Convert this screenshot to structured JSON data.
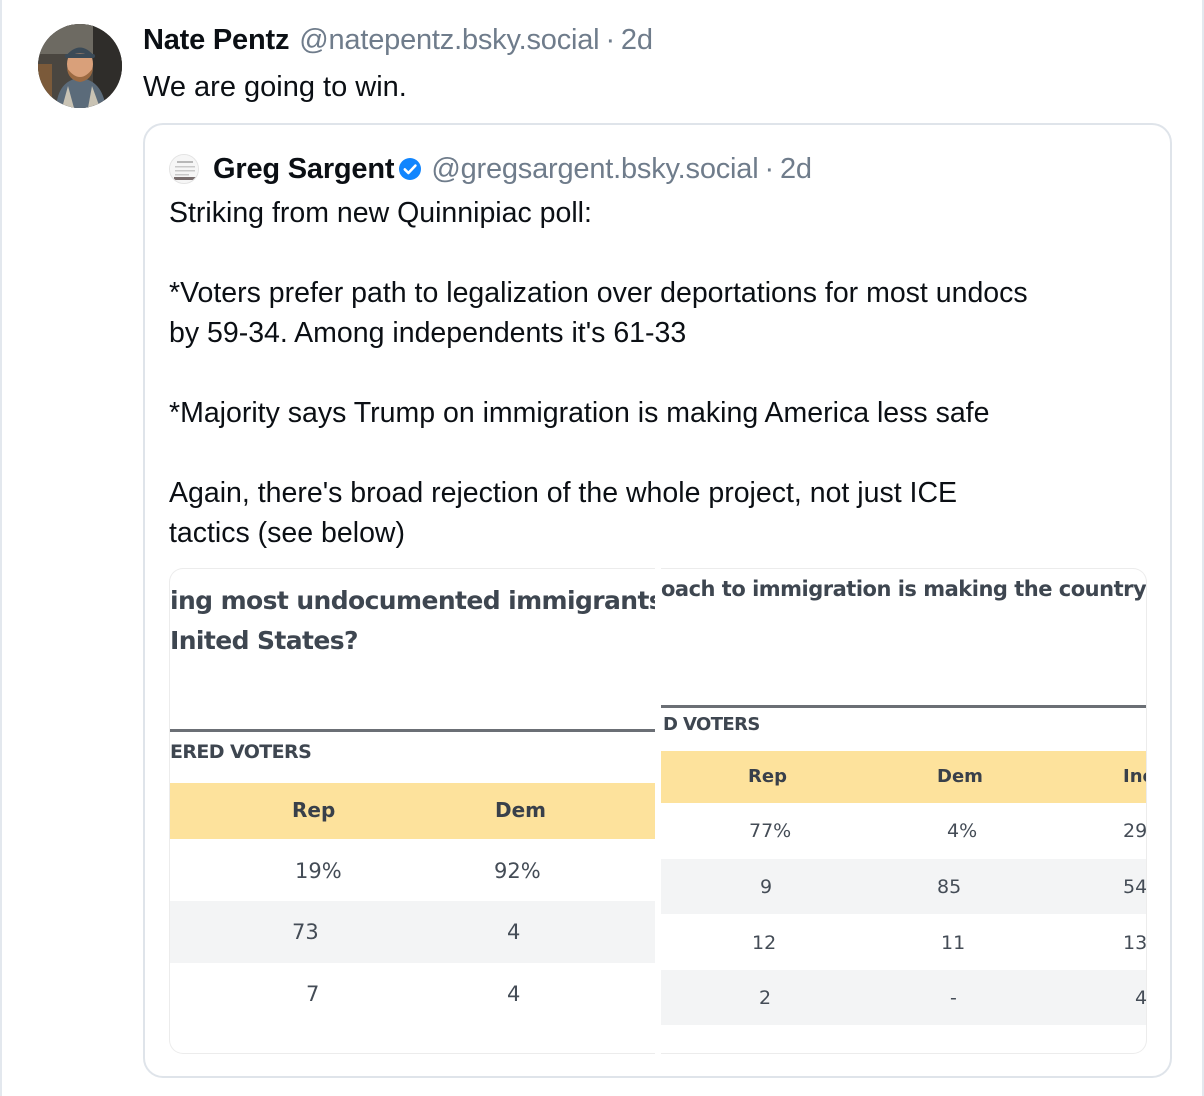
{
  "post": {
    "author_name": "Nate Pentz",
    "author_handle": "@natepentz.bsky.social",
    "separator": "·",
    "timestamp": "2d",
    "text": "We are going to win."
  },
  "quote": {
    "author_name": "Greg Sargent",
    "author_handle": "@gregsargent.bsky.social",
    "separator": "·",
    "timestamp": "2d",
    "paragraphs": [
      [
        "Striking from new Quinnipiac poll:"
      ],
      [
        "*Voters prefer path to legalization over deportations for most undocs",
        "by 59-34. Among independents it's 61-33"
      ],
      [
        "*Majority says Trump on immigration is making America less safe"
      ],
      [
        "Again, there's broad rejection of the whole project, not just ICE",
        "tactics (see below)"
      ]
    ]
  },
  "image_left": {
    "title_lines": [
      "ing most undocumented immigrants ir",
      "Inited States?"
    ],
    "section_label": "ERED VOTERS",
    "columns": [
      "Rep",
      "Dem"
    ],
    "rows": [
      [
        "19%",
        "92%"
      ],
      [
        "73",
        "4"
      ],
      [
        "7",
        "4"
      ]
    ]
  },
  "image_right": {
    "title": "oach to immigration is making the country r",
    "section_label": "D VOTERS",
    "columns": [
      "Rep",
      "Dem",
      "Inc"
    ],
    "rows": [
      [
        "77%",
        "4%",
        "29"
      ],
      [
        "9",
        "85",
        "54"
      ],
      [
        "12",
        "11",
        "13"
      ],
      [
        "2",
        "-",
        "4"
      ]
    ]
  },
  "colors": {
    "text": "#0b0f14",
    "muted": "#6f7c8b",
    "border": "#dfe4ea",
    "verified": "#1185fe",
    "table_header": "#fde29c"
  },
  "icons": {
    "verified": "verified-check-icon"
  }
}
